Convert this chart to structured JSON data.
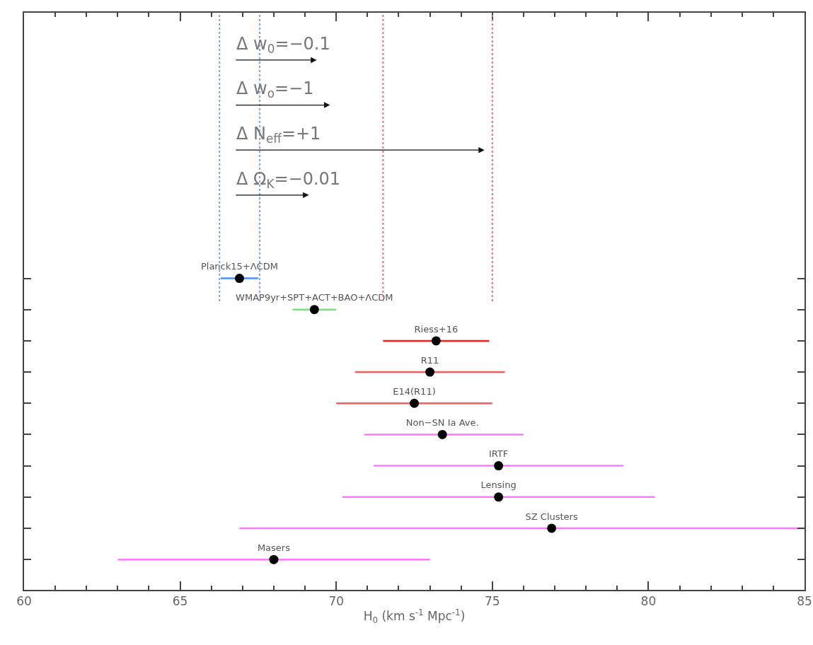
{
  "chart_data": {
    "type": "scatter",
    "orientation": "horizontal",
    "xlabel": "H$_{0}$ (km s$^{-1}$ Mpc$^{-1}$)",
    "categories": [
      "Planck15+ΛCDM",
      "WMAP9yr+SPT+ACT+BAO+ΛCDM",
      "Riess+16",
      "R11",
      "E14(R11)",
      "Non−SN Ia Ave.",
      "IRTF",
      "Lensing",
      "SZ Clusters",
      "Masers"
    ],
    "series": [
      {
        "color": "#4a90ff",
        "colors": [
          "#000000",
          null,
          null,
          null,
          null,
          null,
          null,
          null,
          null,
          null
        ],
        "values": [
          66.9,
          null,
          null,
          null,
          null,
          null,
          null,
          null,
          null,
          null
        ],
        "errors": [
          [
            66.3,
            67.5
          ],
          null,
          null,
          null,
          null,
          null,
          null,
          null,
          null,
          null
        ]
      },
      {
        "color": "#7fe07f",
        "colors": [
          null,
          "#000000",
          null,
          null,
          null,
          null,
          null,
          null,
          null,
          null
        ],
        "values": [
          null,
          69.3,
          null,
          null,
          null,
          null,
          null,
          null,
          null,
          null
        ],
        "errors": [
          null,
          [
            68.6,
            70.0
          ],
          null,
          null,
          null,
          null,
          null,
          null,
          null,
          null
        ]
      },
      {
        "color": "#ff1a1a",
        "colors": [
          null,
          null,
          "#000000",
          null,
          null,
          null,
          null,
          null,
          null,
          null
        ],
        "values": [
          null,
          null,
          73.2,
          null,
          null,
          null,
          null,
          null,
          null,
          null
        ],
        "errors": [
          null,
          null,
          [
            71.5,
            74.9
          ],
          null,
          null,
          null,
          null,
          null,
          null,
          null
        ]
      },
      {
        "color": "#ff5a5a",
        "colors": [
          null,
          null,
          null,
          "#000000",
          "#000000",
          null,
          null,
          null,
          null,
          null
        ],
        "values": [
          null,
          null,
          null,
          73.0,
          72.5,
          null,
          null,
          null,
          null,
          null
        ],
        "errors": [
          null,
          null,
          null,
          [
            70.6,
            75.4
          ],
          [
            70.0,
            75.0
          ],
          null,
          null,
          null,
          null,
          null
        ]
      },
      {
        "color": "#ff77ff",
        "colors": [
          null,
          null,
          null,
          null,
          null,
          "#000000",
          "#000000",
          "#000000",
          "#000000",
          "#000000"
        ],
        "values": [
          null,
          null,
          null,
          null,
          null,
          73.4,
          75.2,
          75.2,
          76.9,
          68.0
        ],
        "errors": [
          null,
          null,
          null,
          null,
          null,
          [
            70.9,
            76.0
          ],
          [
            71.2,
            79.2
          ],
          [
            70.2,
            80.2
          ],
          [
            66.9,
            85.0
          ],
          [
            63.0,
            73.0
          ]
        ]
      }
    ],
    "marker": "circle",
    "xlim": [
      60,
      85
    ],
    "xticks": [
      60,
      65,
      70,
      75,
      80,
      85
    ],
    "tick_labels": "x",
    "grid": false,
    "ref_lines": [
      {
        "axis": "x",
        "value": 66.26,
        "color": "#6aa8ff",
        "line_style": "dotted"
      },
      {
        "axis": "x",
        "value": 67.55,
        "color": "#6aa8ff",
        "line_style": "dotted"
      },
      {
        "axis": "x",
        "value": 71.5,
        "color": "#ff6a6a",
        "line_style": "dotted"
      },
      {
        "axis": "x",
        "value": 75.0,
        "color": "#ff6a6a",
        "line_style": "dotted"
      }
    ],
    "annotations": [
      "Δ w$_{0}$=−0.1",
      "Δ w$_{o}$=−1",
      "Δ N$_{eff}$=+1",
      "Δ Ω$_{K}$=−0.01"
    ]
  }
}
